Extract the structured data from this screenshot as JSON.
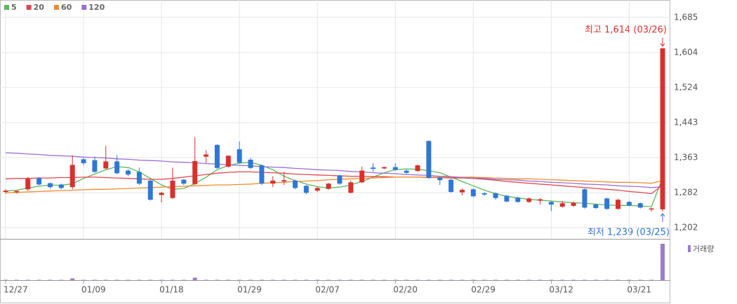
{
  "chart_data": {
    "type": "candlestick",
    "categories": [
      "12/27",
      null,
      null,
      null,
      null,
      null,
      null,
      "01/09",
      null,
      null,
      null,
      null,
      null,
      null,
      "01/18",
      null,
      null,
      null,
      null,
      null,
      null,
      "01/29",
      null,
      null,
      null,
      null,
      null,
      null,
      "02/07",
      null,
      null,
      null,
      null,
      null,
      null,
      "02/20",
      null,
      null,
      null,
      null,
      null,
      null,
      "02/29",
      null,
      null,
      null,
      null,
      null,
      null,
      "03/12",
      null,
      null,
      null,
      null,
      null,
      null,
      "03/21",
      null,
      null,
      null
    ],
    "open": [
      1284,
      1283,
      1290,
      1316,
      1304,
      1301,
      1295,
      1359,
      1357,
      1338,
      1354,
      1333,
      1330,
      1310,
      1277,
      1270,
      1312,
      1302,
      1365,
      1392,
      1342,
      1382,
      1358,
      1345,
      1303,
      1308,
      1310,
      1298,
      1287,
      1291,
      1322,
      1282,
      1306,
      1340,
      1338,
      1341,
      1333,
      1332,
      1401,
      1317,
      1312,
      1283,
      1290,
      1281,
      1281,
      1275,
      1271,
      1261,
      1264,
      1261,
      1250,
      1252,
      1290,
      1255,
      1269,
      1245,
      1261,
      1258,
      1244,
      1244
    ],
    "high": [
      1290,
      1288,
      1318,
      1318,
      1306,
      1303,
      1368,
      1362,
      1365,
      1390,
      1368,
      1336,
      1340,
      1312,
      1284,
      1340,
      1314,
      1410,
      1380,
      1394,
      1368,
      1400,
      1362,
      1347,
      1320,
      1330,
      1312,
      1300,
      1295,
      1305,
      1324,
      1310,
      1342,
      1350,
      1342,
      1350,
      1335,
      1347,
      1402,
      1319,
      1314,
      1292,
      1292,
      1283,
      1283,
      1277,
      1273,
      1271,
      1270,
      1263,
      1263,
      1262,
      1292,
      1257,
      1271,
      1268,
      1263,
      1260,
      1248,
      1614
    ],
    "low": [
      1280,
      1280,
      1286,
      1299,
      1292,
      1290,
      1290,
      1345,
      1328,
      1336,
      1325,
      1320,
      1300,
      1264,
      1260,
      1268,
      1300,
      1300,
      1350,
      1337,
      1340,
      1349,
      1337,
      1300,
      1295,
      1300,
      1290,
      1279,
      1284,
      1289,
      1300,
      1280,
      1304,
      1330,
      1336,
      1333,
      1325,
      1330,
      1314,
      1300,
      1282,
      1276,
      1272,
      1275,
      1266,
      1260,
      1259,
      1259,
      1255,
      1240,
      1248,
      1250,
      1246,
      1245,
      1243,
      1243,
      1251,
      1246,
      1239,
      1239
    ],
    "close": [
      1287,
      1286,
      1314,
      1301,
      1295,
      1293,
      1346,
      1350,
      1330,
      1354,
      1327,
      1324,
      1303,
      1266,
      1282,
      1310,
      1303,
      1355,
      1370,
      1339,
      1367,
      1351,
      1339,
      1303,
      1310,
      1311,
      1293,
      1282,
      1293,
      1303,
      1303,
      1306,
      1333,
      1337,
      1341,
      1335,
      1328,
      1345,
      1316,
      1311,
      1284,
      1289,
      1274,
      1278,
      1270,
      1262,
      1261,
      1269,
      1267,
      1255,
      1258,
      1259,
      1248,
      1247,
      1245,
      1266,
      1253,
      1248,
      1246,
      1614
    ],
    "up_color": "#d9302c",
    "down_color": "#2f77d4",
    "series": [
      {
        "name": "5",
        "color": "#5cb85c",
        "values": [
          1286,
          1288,
          1293,
          1297,
          1300,
          1299,
          1303,
          1315,
          1325,
          1335,
          1342,
          1340,
          1330,
          1315,
          1300,
          1290,
          1292,
          1303,
          1318,
          1335,
          1345,
          1350,
          1352,
          1345,
          1335,
          1320,
          1310,
          1302,
          1296,
          1293,
          1295,
          1300,
          1308,
          1318,
          1328,
          1335,
          1337,
          1336,
          1333,
          1328,
          1318,
          1308,
          1298,
          1288,
          1280,
          1274,
          1270,
          1267,
          1265,
          1263,
          1261,
          1259,
          1258,
          1256,
          1254,
          1253,
          1253,
          1252,
          1250,
          1316
        ]
      },
      {
        "name": "20",
        "color": "#e0474c",
        "values": [
          1314,
          1315,
          1315,
          1316,
          1316,
          1317,
          1317,
          1318,
          1318,
          1317,
          1316,
          1315,
          1314,
          1313,
          1313,
          1315,
          1318,
          1321,
          1324,
          1327,
          1329,
          1330,
          1330,
          1329,
          1328,
          1327,
          1325,
          1324,
          1323,
          1322,
          1321,
          1320,
          1320,
          1319,
          1319,
          1318,
          1318,
          1318,
          1317,
          1317,
          1316,
          1316,
          1315,
          1313,
          1311,
          1308,
          1306,
          1304,
          1302,
          1300,
          1298,
          1296,
          1294,
          1292,
          1290,
          1288,
          1285,
          1283,
          1280,
          1300
        ]
      },
      {
        "name": "60",
        "color": "#f08c2e",
        "values": [
          1282,
          1283,
          1284,
          1285,
          1286,
          1287,
          1288,
          1289,
          1290,
          1290,
          1291,
          1292,
          1293,
          1294,
          1295,
          1296,
          1297,
          1298,
          1299,
          1300,
          1300,
          1301,
          1302,
          1304,
          1305,
          1306,
          1308,
          1309,
          1310,
          1312,
          1313,
          1314,
          1315,
          1316,
          1317,
          1318,
          1318,
          1318,
          1318,
          1318,
          1318,
          1318,
          1318,
          1317,
          1316,
          1315,
          1314,
          1314,
          1313,
          1312,
          1311,
          1310,
          1309,
          1308,
          1307,
          1306,
          1306,
          1305,
          1304,
          1310
        ]
      },
      {
        "name": "120",
        "color": "#9b6fd0",
        "values": [
          1374,
          1373,
          1371,
          1370,
          1368,
          1367,
          1366,
          1364,
          1363,
          1362,
          1360,
          1359,
          1357,
          1356,
          1355,
          1353,
          1352,
          1351,
          1349,
          1348,
          1346,
          1345,
          1344,
          1342,
          1341,
          1340,
          1338,
          1337,
          1335,
          1334,
          1333,
          1331,
          1330,
          1328,
          1327,
          1326,
          1324,
          1323,
          1322,
          1320,
          1319,
          1317,
          1316,
          1315,
          1313,
          1312,
          1311,
          1309,
          1308,
          1306,
          1305,
          1304,
          1302,
          1301,
          1300,
          1298,
          1297,
          1296,
          1294,
          1296
        ]
      }
    ],
    "volume": {
      "name": "거래량",
      "color": "#9b7fc9",
      "values": [
        1,
        1,
        1,
        1,
        1,
        1,
        5,
        1,
        1,
        1,
        1,
        1,
        1,
        1,
        1,
        1,
        1,
        7,
        1,
        1,
        1,
        1,
        1,
        1,
        1,
        1,
        1,
        1,
        1,
        1,
        1,
        1,
        1,
        1,
        1,
        1,
        1,
        1,
        1,
        1,
        1,
        1,
        1,
        1,
        1,
        1,
        1,
        1,
        1,
        1,
        1,
        1,
        1,
        1,
        1,
        1,
        1,
        1,
        1,
        100
      ]
    },
    "volume_ylim": [
      0,
      100
    ],
    "ylim": [
      1181,
      1712
    ],
    "yticks": [
      {
        "value": 1202,
        "label": "1,202"
      },
      {
        "value": 1282,
        "label": "1,282"
      },
      {
        "value": 1363,
        "label": "1,363"
      },
      {
        "value": 1443,
        "label": "1,443"
      },
      {
        "value": 1524,
        "label": "1,524"
      },
      {
        "value": 1604,
        "label": "1,604"
      },
      {
        "value": 1685,
        "label": "1,685"
      }
    ],
    "grid": true,
    "max_annotation": "최고 1,614 (03/26)",
    "min_annotation": "최저 1,239 (03/25)"
  }
}
